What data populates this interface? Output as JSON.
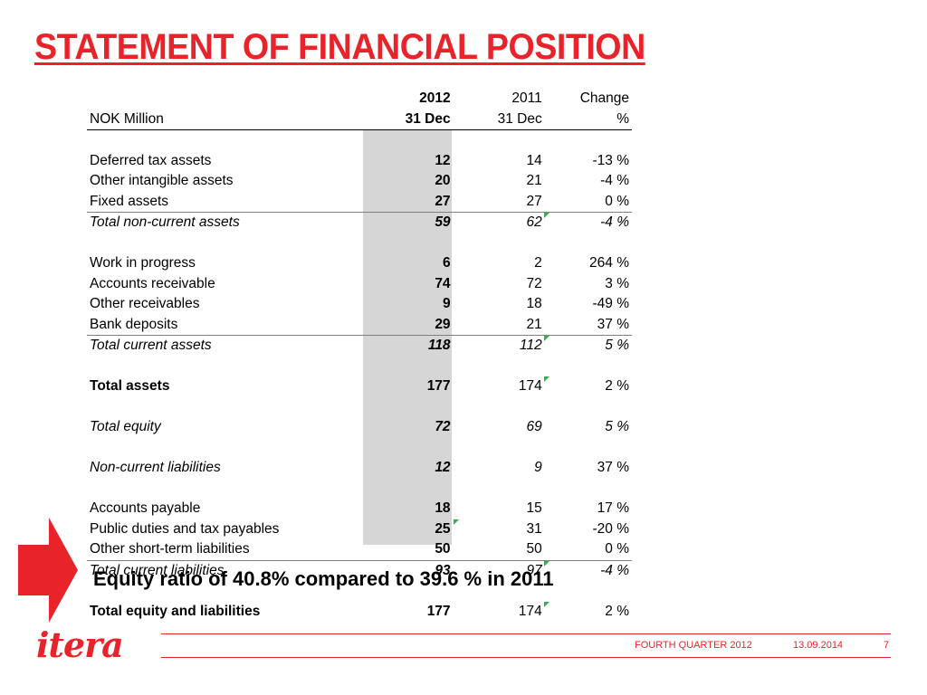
{
  "page": {
    "title": "STATEMENT OF FINANCIAL POSITION",
    "callout": "Equity ratio of 40.8% compared to 39.6 % in 2011",
    "logo": "itera",
    "accent_color": "#e8232a",
    "highlight_color": "#d6d6d6",
    "flag_color": "#2db34a"
  },
  "table": {
    "header": {
      "row1": {
        "label": "",
        "c2012": "2012",
        "c2011": "2011",
        "change": "Change"
      },
      "row2": {
        "label": "NOK Million",
        "c2012": "31 Dec",
        "c2011": "31 Dec",
        "change": "%"
      }
    },
    "rows": [
      {
        "label": "Deferred tax assets",
        "c2012": "12",
        "c2011": "14",
        "change": "-13 %"
      },
      {
        "label": "Other intangible assets",
        "c2012": "20",
        "c2011": "21",
        "change": "-4 %"
      },
      {
        "label": "Fixed assets",
        "c2012": "27",
        "c2011": "27",
        "change": "0 %"
      },
      {
        "label": "Total non-current assets",
        "c2012": "59",
        "c2011": "62",
        "change": "-4 %"
      },
      {
        "label": "Work in progress",
        "c2012": "6",
        "c2011": "2",
        "change": "264 %"
      },
      {
        "label": "Accounts receivable",
        "c2012": "74",
        "c2011": "72",
        "change": "3 %"
      },
      {
        "label": "Other receivables",
        "c2012": "9",
        "c2011": "18",
        "change": "-49 %"
      },
      {
        "label": "Bank deposits",
        "c2012": "29",
        "c2011": "21",
        "change": "37 %"
      },
      {
        "label": "Total current assets",
        "c2012": "118",
        "c2011": "112",
        "change": "5 %"
      },
      {
        "label": "Total assets",
        "c2012": "177",
        "c2011": "174",
        "change": "2 %"
      },
      {
        "label": "Total equity",
        "c2012": "72",
        "c2011": "69",
        "change": "5 %"
      },
      {
        "label": "Non-current liabilities",
        "c2012": "12",
        "c2011": "9",
        "change": "37 %"
      },
      {
        "label": "Accounts payable",
        "c2012": "18",
        "c2011": "15",
        "change": "17 %"
      },
      {
        "label": "Public duties and tax payables",
        "c2012": "25",
        "c2011": "31",
        "change": "-20 %"
      },
      {
        "label": "Other short-term liabilities",
        "c2012": "50",
        "c2011": "50",
        "change": "0 %"
      },
      {
        "label": "Total current liabilities",
        "c2012": "93",
        "c2011": "97",
        "change": "-4 %"
      },
      {
        "label": "Total equity and liabilities",
        "c2012": "177",
        "c2011": "174",
        "change": "2 %"
      }
    ]
  },
  "footer": {
    "section": "FOURTH QUARTER 2012",
    "date": "13.09.2014",
    "page_number": "7"
  }
}
